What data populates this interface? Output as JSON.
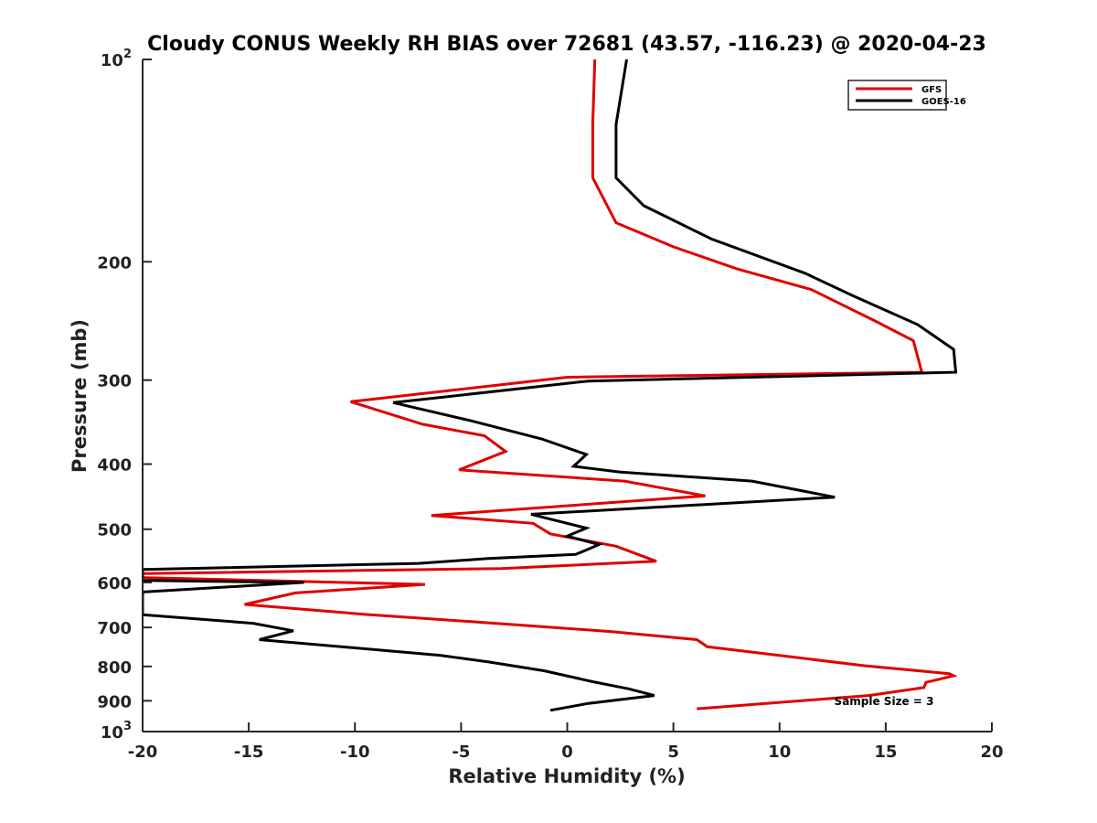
{
  "chart_data": {
    "type": "line",
    "title": "Cloudy CONUS Weekly RH BIAS over 72681 (43.57, -116.23) @ 2020-04-23",
    "xlabel": "Relative Humidity (%)",
    "ylabel": "Pressure (mb)",
    "xlim": [
      -20,
      20
    ],
    "ylim": [
      100,
      1000
    ],
    "y_scale": "log",
    "y_reversed": true,
    "x_ticks": [
      "-20",
      "-15",
      "-10",
      "-5",
      "0",
      "5",
      "10",
      "15",
      "20"
    ],
    "y_ticks": [
      {
        "value": 100,
        "base": "10",
        "exp": "2"
      },
      {
        "value": 200,
        "label": "200"
      },
      {
        "value": 300,
        "label": "300"
      },
      {
        "value": 400,
        "label": "400"
      },
      {
        "value": 500,
        "label": "500"
      },
      {
        "value": 600,
        "label": "600"
      },
      {
        "value": 700,
        "label": "700"
      },
      {
        "value": 800,
        "label": "800"
      },
      {
        "value": 900,
        "label": "900"
      },
      {
        "value": 1000,
        "base": "10",
        "exp": "3"
      }
    ],
    "legend_position": "top-right",
    "annotation": "Sample Size = 3",
    "series": [
      {
        "name": "GFS",
        "color": "#e00000",
        "points": [
          [
            1.3,
            100
          ],
          [
            1.2,
            125
          ],
          [
            1.2,
            150
          ],
          [
            2.3,
            175
          ],
          [
            5.0,
            190
          ],
          [
            8.0,
            205
          ],
          [
            11.5,
            220
          ],
          [
            14.5,
            245
          ],
          [
            16.3,
            262
          ],
          [
            16.7,
            292
          ],
          [
            0,
            297
          ],
          [
            -1.6,
            301
          ],
          [
            -10.2,
            323
          ],
          [
            -6.8,
            349
          ],
          [
            -3.9,
            363
          ],
          [
            -2.9,
            383
          ],
          [
            -5.1,
            408
          ],
          [
            2.7,
            424
          ],
          [
            6.5,
            446
          ],
          [
            -6.4,
            477
          ],
          [
            -1.6,
            490
          ],
          [
            -0.8,
            508
          ],
          [
            2.3,
            530
          ],
          [
            4.2,
            558
          ],
          [
            -3.1,
            572
          ],
          [
            -20,
            582
          ],
          [
            -20,
            590
          ],
          [
            -6.7,
            604
          ],
          [
            -12.8,
            622
          ],
          [
            -15.2,
            647
          ],
          [
            -9.6,
            669
          ],
          [
            -4.0,
            688
          ],
          [
            2.1,
            710
          ],
          [
            6.1,
            730
          ],
          [
            6.6,
            748
          ],
          [
            14.0,
            798
          ],
          [
            18.0,
            820
          ],
          [
            18.2,
            826
          ],
          [
            16.9,
            845
          ],
          [
            16.8,
            860
          ],
          [
            14.2,
            884
          ],
          [
            6.1,
            925
          ]
        ]
      },
      {
        "name": "GOES-16",
        "color": "#000000",
        "points": [
          [
            2.8,
            100
          ],
          [
            2.3,
            125
          ],
          [
            2.3,
            150
          ],
          [
            3.6,
            165
          ],
          [
            6.8,
            185
          ],
          [
            11.2,
            208
          ],
          [
            13.5,
            225
          ],
          [
            16.5,
            248
          ],
          [
            18.2,
            270
          ],
          [
            18.3,
            292
          ],
          [
            1.0,
            301
          ],
          [
            -8.2,
            324
          ],
          [
            -4.5,
            345
          ],
          [
            -1.2,
            367
          ],
          [
            0.9,
            387
          ],
          [
            0.3,
            403
          ],
          [
            2.5,
            411
          ],
          [
            8.7,
            424
          ],
          [
            12.6,
            448
          ],
          [
            -1.7,
            475
          ],
          [
            0.9,
            498
          ],
          [
            0.0,
            512
          ],
          [
            1.5,
            527
          ],
          [
            0.4,
            545
          ],
          [
            -3.8,
            553
          ],
          [
            -7.0,
            562
          ],
          [
            -20,
            574
          ],
          [
            -20,
            596
          ],
          [
            -12.4,
            600
          ],
          [
            -20,
            620
          ],
          [
            -20,
            670
          ],
          [
            -14.8,
            690
          ],
          [
            -12.9,
            708
          ],
          [
            -14.5,
            730
          ],
          [
            -6.0,
            770
          ],
          [
            -3.7,
            788
          ],
          [
            -1.1,
            812
          ],
          [
            1.2,
            843
          ],
          [
            2.9,
            864
          ],
          [
            4.1,
            884
          ],
          [
            1.0,
            908
          ],
          [
            -0.8,
            930
          ]
        ]
      }
    ]
  }
}
